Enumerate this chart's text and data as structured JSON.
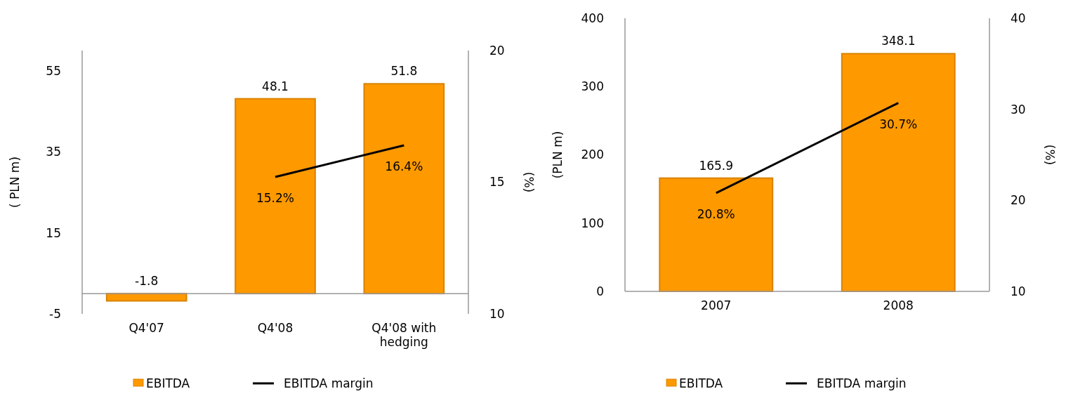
{
  "chart_data": [
    {
      "type": "bar",
      "categories": [
        "Q4'07",
        "Q4'08",
        "Q4'08 with hedging"
      ],
      "ylabel": "( PLN m)",
      "y2label": "(%)",
      "ylim": [
        -5,
        60
      ],
      "yticks": [
        -5,
        15,
        35,
        55
      ],
      "y2lim": [
        10,
        20
      ],
      "y2ticks": [
        10,
        15,
        20
      ],
      "legend": "bottom",
      "grid": false,
      "series": [
        {
          "name": "EBITDA",
          "color": "#ff9900",
          "values": [
            -1.8,
            48.1,
            51.8
          ],
          "value_labels": [
            "-1.8",
            "48.1",
            "51.8"
          ]
        },
        {
          "name": "EBITDA  margin",
          "type": "line",
          "axis": "y2",
          "color": "#000000",
          "values": [
            null,
            15.2,
            16.4
          ],
          "value_labels": [
            null,
            "15.2%",
            "16.4%"
          ]
        }
      ]
    },
    {
      "type": "bar",
      "categories": [
        "2007",
        "2008"
      ],
      "ylabel": "(PLN m)",
      "y2label": "(%)",
      "ylim": [
        0,
        400
      ],
      "yticks": [
        0,
        100,
        200,
        300,
        400
      ],
      "y2lim": [
        10,
        40
      ],
      "y2ticks": [
        10,
        20,
        30,
        40
      ],
      "legend": "bottom",
      "grid": false,
      "series": [
        {
          "name": "EBITDA",
          "color": "#ff9900",
          "values": [
            165.9,
            348.1
          ],
          "value_labels": [
            "165.9",
            "348.1"
          ]
        },
        {
          "name": "EBITDA margin",
          "type": "line",
          "axis": "y2",
          "color": "#000000",
          "values": [
            20.8,
            30.7
          ],
          "value_labels": [
            "20.8%",
            "30.7%"
          ]
        }
      ]
    }
  ]
}
